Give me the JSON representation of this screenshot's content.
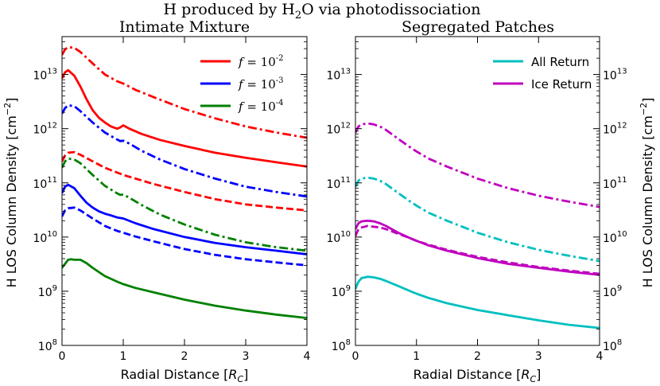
{
  "figure": {
    "suptitle": "H produced by H2O via photodissociation",
    "ylabel": "H LOS Column Density [cm^-2]",
    "xlabel": "Radial Distance [R_C]"
  },
  "chart_data": [
    {
      "type": "line",
      "title": "Intimate Mixture",
      "xlabel": "Radial Distance [R_C]",
      "ylabel": "H LOS Column Density [cm^-2]",
      "xlim": [
        0,
        4
      ],
      "ylim": [
        100000000.0,
        50000000000000.0
      ],
      "yscale": "log",
      "xticks": [
        "0",
        "1",
        "2",
        "3",
        "4"
      ],
      "yticks": [
        "10^8",
        "10^9",
        "10^10",
        "10^11",
        "10^12",
        "10^13"
      ],
      "legend": {
        "placement": "top-right",
        "entries": [
          {
            "label": "f = 10^-2",
            "color": "#ff0000"
          },
          {
            "label": "f = 10^-3",
            "color": "#0000ff"
          },
          {
            "label": "f = 10^-4",
            "color": "#008000"
          }
        ]
      },
      "series": [
        {
          "color": "#ff0000",
          "style": "dashdot",
          "x": [
            0,
            0.05,
            0.1,
            0.2,
            0.3,
            0.5,
            0.7,
            0.9,
            1.0,
            1.2,
            1.5,
            2.0,
            2.5,
            3.0,
            3.5,
            4.0
          ],
          "y": [
            23000000000000.0,
            29000000000000.0,
            32000000000000.0,
            31000000000000.0,
            26000000000000.0,
            16000000000000.0,
            10000000000000.0,
            7500000000000.0,
            6800000000000.0,
            5200000000000.0,
            3800000000000.0,
            2300000000000.0,
            1550000000000.0,
            1100000000000.0,
            850000000000.0,
            680000000000.0
          ]
        },
        {
          "color": "#ff0000",
          "style": "solid",
          "x": [
            0,
            0.05,
            0.1,
            0.2,
            0.3,
            0.4,
            0.5,
            0.6,
            0.7,
            0.8,
            0.9,
            0.95,
            1.0,
            1.1,
            1.3,
            1.6,
            2.0,
            2.5,
            3.0,
            3.5,
            4.0
          ],
          "y": [
            8500000000000.0,
            11000000000000.0,
            12000000000000.0,
            9500000000000.0,
            6000000000000.0,
            3500000000000.0,
            2200000000000.0,
            1600000000000.0,
            1300000000000.0,
            1100000000000.0,
            1000000000000.0,
            1050000000000.0,
            1150000000000.0,
            1000000000000.0,
            800000000000.0,
            620000000000.0,
            480000000000.0,
            360000000000.0,
            290000000000.0,
            240000000000.0,
            200000000000.0
          ]
        },
        {
          "color": "#0000ff",
          "style": "dashdot",
          "x": [
            0,
            0.05,
            0.1,
            0.2,
            0.3,
            0.5,
            0.7,
            0.9,
            0.95,
            1.0,
            1.1,
            1.3,
            1.6,
            2.0,
            2.5,
            3.0,
            3.5,
            4.0
          ],
          "y": [
            1900000000000.0,
            2400000000000.0,
            2700000000000.0,
            2600000000000.0,
            2100000000000.0,
            1300000000000.0,
            850000000000.0,
            630000000000.0,
            590000000000.0,
            600000000000.0,
            530000000000.0,
            390000000000.0,
            270000000000.0,
            180000000000.0,
            120000000000.0,
            85000000000.0,
            68000000000.0,
            56000000000.0
          ]
        },
        {
          "color": "#ff0000",
          "style": "dashed",
          "x": [
            0,
            0.05,
            0.1,
            0.2,
            0.3,
            0.5,
            0.7,
            0.9,
            1.0,
            1.2,
            1.5,
            2.0,
            2.5,
            3.0,
            3.5,
            4.0
          ],
          "y": [
            250000000000.0,
            320000000000.0,
            360000000000.0,
            370000000000.0,
            330000000000.0,
            250000000000.0,
            190000000000.0,
            155000000000.0,
            140000000000.0,
            120000000000.0,
            95000000000.0,
            68000000000.0,
            50000000000.0,
            40000000000.0,
            35000000000.0,
            31000000000.0
          ]
        },
        {
          "color": "#008000",
          "style": "dashdot",
          "x": [
            0,
            0.05,
            0.1,
            0.2,
            0.3,
            0.5,
            0.7,
            0.9,
            0.95,
            1.0,
            1.1,
            1.3,
            1.6,
            2.0,
            2.5,
            3.0,
            3.5,
            4.0
          ],
          "y": [
            190000000000.0,
            250000000000.0,
            280000000000.0,
            270000000000.0,
            230000000000.0,
            140000000000.0,
            88000000000.0,
            64000000000.0,
            60000000000.0,
            61000000000.0,
            53000000000.0,
            39000000000.0,
            26000000000.0,
            17000000000.0,
            11000000000.0,
            8000000000.0,
            6500000000.0,
            5600000000.0
          ]
        },
        {
          "color": "#0000ff",
          "style": "solid",
          "x": [
            0,
            0.05,
            0.1,
            0.2,
            0.3,
            0.4,
            0.5,
            0.6,
            0.7,
            0.8,
            0.9,
            1.0,
            1.2,
            1.5,
            2.0,
            2.5,
            3.0,
            3.5,
            4.0
          ],
          "y": [
            65000000000.0,
            85000000000.0,
            92000000000.0,
            80000000000.0,
            58000000000.0,
            43000000000.0,
            35000000000.0,
            30000000000.0,
            27000000000.0,
            25000000000.0,
            23000000000.0,
            22000000000.0,
            18000000000.0,
            14000000000.0,
            10000000000.0,
            7800000000.0,
            6500000000.0,
            5600000000.0,
            4800000000.0
          ]
        },
        {
          "color": "#0000ff",
          "style": "dashed",
          "x": [
            0,
            0.05,
            0.1,
            0.2,
            0.3,
            0.5,
            0.7,
            0.9,
            1.0,
            1.2,
            1.5,
            2.0,
            2.5,
            3.0,
            3.5,
            4.0
          ],
          "y": [
            24000000000.0,
            31000000000.0,
            34000000000.0,
            35000000000.0,
            31000000000.0,
            22000000000.0,
            16000000000.0,
            13000000000.0,
            12000000000.0,
            10200000000.0,
            8300000000.0,
            6000000000.0,
            4700000000.0,
            3900000000.0,
            3400000000.0,
            3000000000.0
          ]
        },
        {
          "color": "#008000",
          "style": "solid",
          "x": [
            0,
            0.05,
            0.1,
            0.15,
            0.2,
            0.3,
            0.4,
            0.5,
            0.7,
            0.9,
            1.0,
            1.2,
            1.5,
            2.0,
            2.5,
            3.0,
            3.5,
            4.0
          ],
          "y": [
            2700000000.0,
            3200000000.0,
            3800000000.0,
            3900000000.0,
            3800000000.0,
            3800000000.0,
            3300000000.0,
            2700000000.0,
            1900000000.0,
            1500000000.0,
            1350000000.0,
            1150000000.0,
            950000000.0,
            700000000.0,
            540000000.0,
            440000000.0,
            370000000.0,
            320000000.0
          ]
        }
      ]
    },
    {
      "type": "line",
      "title": "Segregated Patches",
      "xlabel": "Radial Distance [R_C]",
      "ylabel": "H LOS Column Density [cm^-2]",
      "xlim": [
        0,
        4
      ],
      "ylim": [
        100000000.0,
        50000000000000.0
      ],
      "yscale": "log",
      "xticks": [
        "0",
        "1",
        "2",
        "3",
        "4"
      ],
      "yticks": [
        "10^8",
        "10^9",
        "10^10",
        "10^11",
        "10^12",
        "10^13"
      ],
      "legend": {
        "placement": "top-right",
        "entries": [
          {
            "label": "All Return",
            "color": "#00bfbf"
          },
          {
            "label": "Ice Return",
            "color": "#bf00bf"
          }
        ]
      },
      "series": [
        {
          "color": "#bf00bf",
          "style": "dashdot",
          "x": [
            0,
            0.05,
            0.1,
            0.2,
            0.3,
            0.4,
            0.5,
            0.7,
            0.9,
            1.0,
            1.2,
            1.5,
            2.0,
            2.5,
            3.0,
            3.5,
            4.0
          ],
          "y": [
            850000000000.0,
            1100000000000.0,
            1200000000000.0,
            1250000000000.0,
            1200000000000.0,
            1100000000000.0,
            950000000000.0,
            650000000000.0,
            450000000000.0,
            380000000000.0,
            280000000000.0,
            200000000000.0,
            120000000000.0,
            80000000000.0,
            58000000000.0,
            45000000000.0,
            36000000000.0
          ]
        },
        {
          "color": "#00bfbf",
          "style": "dashdot",
          "x": [
            0,
            0.05,
            0.1,
            0.2,
            0.3,
            0.4,
            0.5,
            0.7,
            0.9,
            1.0,
            1.2,
            1.5,
            2.0,
            2.5,
            3.0,
            3.5,
            4.0
          ],
          "y": [
            85000000000.0,
            110000000000.0,
            120000000000.0,
            125000000000.0,
            120000000000.0,
            110000000000.0,
            95000000000.0,
            65000000000.0,
            45000000000.0,
            38000000000.0,
            28000000000.0,
            20000000000.0,
            12000000000.0,
            8000000000.0,
            5800000000.0,
            4500000000.0,
            3600000000.0
          ]
        },
        {
          "color": "#bf00bf",
          "style": "solid",
          "x": [
            0,
            0.05,
            0.1,
            0.2,
            0.3,
            0.4,
            0.5,
            0.7,
            0.9,
            1.0,
            1.2,
            1.5,
            2.0,
            2.5,
            3.0,
            3.5,
            4.0
          ],
          "y": [
            14000000000.0,
            18000000000.0,
            19500000000.0,
            20000000000.0,
            19500000000.0,
            18000000000.0,
            16000000000.0,
            12000000000.0,
            9500000000.0,
            8500000000.0,
            7000000000.0,
            5600000000.0,
            4100000000.0,
            3200000000.0,
            2700000000.0,
            2300000000.0,
            2000000000.0
          ]
        },
        {
          "color": "#bf00bf",
          "style": "dashed",
          "x": [
            0,
            0.05,
            0.1,
            0.2,
            0.3,
            0.4,
            0.5,
            0.7,
            0.9,
            1.0,
            1.2,
            1.5,
            2.0,
            2.5,
            3.0,
            3.5,
            4.0
          ],
          "y": [
            10500000000.0,
            14000000000.0,
            15000000000.0,
            16000000000.0,
            15500000000.0,
            15000000000.0,
            14000000000.0,
            11500000000.0,
            9500000000.0,
            8500000000.0,
            7200000000.0,
            5800000000.0,
            4300000000.0,
            3400000000.0,
            2800000000.0,
            2400000000.0,
            2100000000.0
          ]
        },
        {
          "color": "#00bfbf",
          "style": "solid",
          "x": [
            0,
            0.05,
            0.1,
            0.2,
            0.3,
            0.4,
            0.5,
            0.7,
            0.9,
            1.0,
            1.2,
            1.5,
            2.0,
            2.5,
            3.0,
            3.5,
            4.0
          ],
          "y": [
            1100000000.0,
            1500000000.0,
            1750000000.0,
            1850000000.0,
            1800000000.0,
            1700000000.0,
            1550000000.0,
            1250000000.0,
            1000000000.0,
            900000000.0,
            750000000.0,
            600000000.0,
            450000000.0,
            360000000.0,
            290000000.0,
            240000000.0,
            210000000.0
          ]
        }
      ]
    }
  ]
}
